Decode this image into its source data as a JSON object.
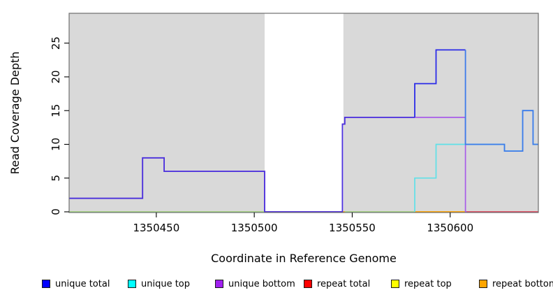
{
  "figure": {
    "panel_bg": "#D9D9D9",
    "panel_border": "#6E6E6E",
    "background": "#FFFFFF",
    "gap_region": {
      "from": 1350505.3,
      "to": 1350545.5,
      "color": "#FFFFFF"
    }
  },
  "chart_data": {
    "type": "line",
    "title": "",
    "xlabel": "Coordinate in Reference Genome",
    "ylabel": "Read Coverage Depth",
    "xlim": [
      1350405.5,
      1350645
    ],
    "ylim": [
      0,
      29.4
    ],
    "grid": false,
    "legend_position": "bottom",
    "x_ticks": [
      1350450,
      1350500,
      1350550,
      1350600
    ],
    "x_tick_labels": [
      "1350450",
      "1350500",
      "1350550",
      "1350600"
    ],
    "y_ticks": [
      0,
      5,
      10,
      15,
      20,
      25
    ],
    "y_tick_labels": [
      "0",
      "5",
      "10",
      "15",
      "20",
      "25"
    ],
    "series": [
      {
        "name": "repeat total",
        "color": "#FF0000",
        "width": 1.3,
        "z": 1,
        "points": [
          [
            1350405.5,
            0
          ]
        ],
        "xend": 1350645
      },
      {
        "name": "repeat top",
        "color": "#FFFF00",
        "width": 1.3,
        "z": 2,
        "points": [
          [
            1350405.5,
            0
          ]
        ],
        "xend": 1350645
      },
      {
        "name": "repeat bottom",
        "color": "#FFA500",
        "width": 1.3,
        "z": 3,
        "points": [
          [
            1350405.5,
            0
          ]
        ],
        "xend": 1350645
      },
      {
        "name": "unique bottom",
        "color": "#A020F0",
        "width": 1.7,
        "z": 5,
        "points": [
          [
            1350405.5,
            2
          ],
          [
            1350443,
            8
          ],
          [
            1350454,
            6
          ],
          [
            1350505.3,
            0
          ],
          [
            1350545,
            13
          ],
          [
            1350546.2,
            14
          ],
          [
            1350607.8,
            0
          ]
        ],
        "xend": 1350645,
        "render_segments": [
          {
            "from": 1350405.5,
            "to": 1350608.4,
            "color": "#A85CE8"
          }
        ]
      },
      {
        "name": "unique top",
        "color": "#00FFFF",
        "width": 1.7,
        "z": 6,
        "points": [
          [
            1350405.5,
            0
          ],
          [
            1350581.9,
            5
          ],
          [
            1350592.8,
            10
          ],
          [
            1350627.7,
            9
          ],
          [
            1350637,
            15
          ],
          [
            1350642.3,
            10
          ]
        ],
        "xend": 1350645,
        "render_segments": [
          {
            "from": 1350581.9,
            "to": 1350645,
            "color": "#5FE0E8"
          }
        ]
      },
      {
        "name": "unique total",
        "color": "#0000FF",
        "width": 1.8,
        "z": 7,
        "points": [
          [
            1350405.5,
            2
          ],
          [
            1350443,
            8
          ],
          [
            1350454,
            6
          ],
          [
            1350505.3,
            0
          ],
          [
            1350545,
            13
          ],
          [
            1350546.2,
            14
          ],
          [
            1350581.9,
            19
          ],
          [
            1350592.8,
            24
          ],
          [
            1350607.8,
            10
          ],
          [
            1350627.7,
            9
          ],
          [
            1350637,
            15
          ],
          [
            1350642.3,
            10
          ]
        ],
        "xend": 1350645,
        "render_segments": [
          {
            "from": 1350405.5,
            "to": 1350581.9,
            "color": "#4B32DC"
          },
          {
            "from": 1350581.9,
            "to": 1350607.8,
            "color": "#2B2BE8"
          },
          {
            "from": 1350607.8,
            "to": 1350645,
            "color": "#3D7BEA"
          }
        ]
      }
    ],
    "baseline_segments": [
      {
        "from": 1350405.5,
        "to": 1350505.3,
        "value": 0,
        "color": "#95DB95"
      },
      {
        "from": 1350546.2,
        "to": 1350581.9,
        "value": 0,
        "color": "#95DB95"
      },
      {
        "from": 1350581.9,
        "to": 1350607.8,
        "value": 0,
        "color": "#FFA500"
      },
      {
        "from": 1350607.8,
        "to": 1350645,
        "value": 0,
        "color": "#D84070"
      }
    ]
  },
  "legend": {
    "items": [
      {
        "label": "unique total",
        "color": "#0000FF"
      },
      {
        "label": "unique top",
        "color": "#00FFFF"
      },
      {
        "label": "unique bottom",
        "color": "#A020F0"
      },
      {
        "label": "repeat total",
        "color": "#FF0000"
      },
      {
        "label": "repeat top",
        "color": "#FFFF00"
      },
      {
        "label": "repeat bottom",
        "color": "#FFA500"
      }
    ]
  }
}
